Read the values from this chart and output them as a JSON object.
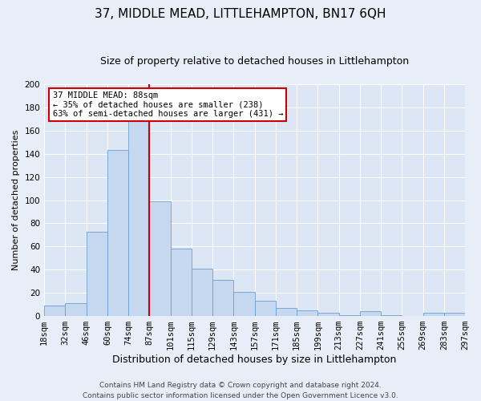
{
  "title": "37, MIDDLE MEAD, LITTLEHAMPTON, BN17 6QH",
  "subtitle": "Size of property relative to detached houses in Littlehampton",
  "xlabel": "Distribution of detached houses by size in Littlehampton",
  "ylabel": "Number of detached properties",
  "bin_labels": [
    "18sqm",
    "32sqm",
    "46sqm",
    "60sqm",
    "74sqm",
    "87sqm",
    "101sqm",
    "115sqm",
    "129sqm",
    "143sqm",
    "157sqm",
    "171sqm",
    "185sqm",
    "199sqm",
    "213sqm",
    "227sqm",
    "241sqm",
    "255sqm",
    "269sqm",
    "283sqm",
    "297sqm"
  ],
  "bar_heights": [
    9,
    11,
    73,
    143,
    170,
    99,
    58,
    41,
    31,
    21,
    13,
    7,
    5,
    3,
    1,
    4,
    1,
    0,
    3,
    3
  ],
  "bar_color": "#c5d8f0",
  "bar_edge_color": "#6a9fd0",
  "vline_color": "#cc0000",
  "vline_x_index": 5,
  "annotation_line1": "37 MIDDLE MEAD: 88sqm",
  "annotation_line2": "← 35% of detached houses are smaller (238)",
  "annotation_line3": "63% of semi-detached houses are larger (431) →",
  "annotation_box_edge_color": "#cc0000",
  "annotation_box_face_color": "#ffffff",
  "footnote": "Contains HM Land Registry data © Crown copyright and database right 2024.\nContains public sector information licensed under the Open Government Licence v3.0.",
  "ylim": [
    0,
    200
  ],
  "xlim_min": 0,
  "xlim_max": 20,
  "background_color": "#e8eef7",
  "plot_background": "#dce6f4",
  "grid_color": "#ffffff",
  "title_fontsize": 11,
  "subtitle_fontsize": 9,
  "xlabel_fontsize": 9,
  "ylabel_fontsize": 8,
  "tick_fontsize": 7.5,
  "annotation_fontsize": 7.5,
  "footnote_fontsize": 6.5,
  "yticks": [
    0,
    20,
    40,
    60,
    80,
    100,
    120,
    140,
    160,
    180,
    200
  ]
}
